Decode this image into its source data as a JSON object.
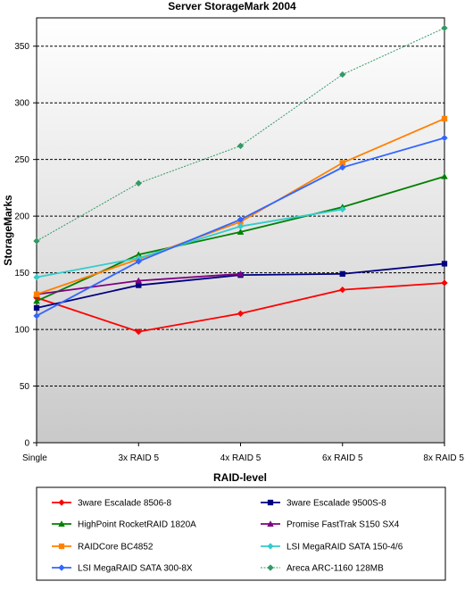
{
  "chart_data": {
    "type": "line",
    "title": "Server StorageMark 2004",
    "xlabel": "RAID-level",
    "ylabel": "StorageMarks",
    "categories": [
      "Single",
      "3x RAID 5",
      "4x RAID 5",
      "6x RAID 5",
      "8x RAID 5"
    ],
    "ylim": [
      0,
      375
    ],
    "yticks": [
      0,
      50,
      100,
      150,
      200,
      250,
      300,
      350
    ],
    "grid": "horizontal dashed",
    "legend_position": "bottom",
    "series": [
      {
        "name": "3ware Escalade 8506-8",
        "color": "#ff0000",
        "marker": "diamond",
        "values": [
          128,
          98,
          114,
          135,
          141
        ]
      },
      {
        "name": "3ware Escalade 9500S-8",
        "color": "#000080",
        "marker": "square",
        "values": [
          119,
          139,
          148,
          149,
          158
        ]
      },
      {
        "name": "HighPoint RocketRAID 1820A",
        "color": "#008000",
        "marker": "triangle",
        "values": [
          125,
          166,
          186,
          208,
          235
        ]
      },
      {
        "name": "Promise FastTrak S150 SX4",
        "color": "#800080",
        "marker": "triangle",
        "values": [
          131,
          143,
          149,
          null,
          null
        ]
      },
      {
        "name": "RAIDCore BC4852",
        "color": "#ff8000",
        "marker": "square",
        "values": [
          131,
          162,
          195,
          247,
          286
        ]
      },
      {
        "name": "LSI MegaRAID SATA 150-4/6",
        "color": "#33cccc",
        "marker": "diamond",
        "values": [
          146,
          163,
          191,
          206,
          null
        ]
      },
      {
        "name": "LSI MegaRAID SATA 300-8X",
        "color": "#3366ff",
        "marker": "diamond",
        "values": [
          112,
          160,
          197,
          243,
          269
        ]
      },
      {
        "name": "Areca ARC-1160 128MB",
        "color": "#339966",
        "marker": "diamond",
        "values": [
          178,
          229,
          262,
          325,
          366
        ],
        "dashed": true
      }
    ]
  }
}
